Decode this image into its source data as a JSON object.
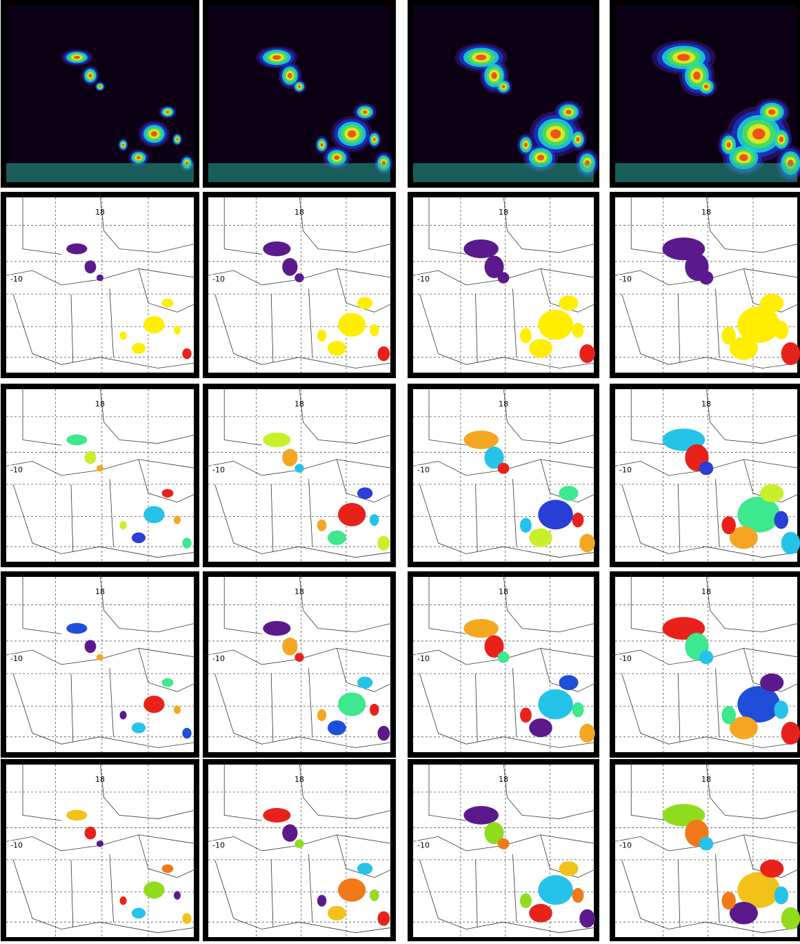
{
  "map_panels": [
    {
      "lat_label": "18",
      "lon_label": "-10"
    },
    {
      "lat_label": "18",
      "lon_label": "-10"
    },
    {
      "lat_label": "18",
      "lon_label": "-10"
    },
    {
      "lat_label": "18",
      "lon_label": "-10"
    },
    {
      "lat_label": "18",
      "lon_label": "-10"
    },
    {
      "lat_label": "18",
      "lon_label": "-10"
    },
    {
      "lat_label": "18",
      "lon_label": "-10"
    },
    {
      "lat_label": "18",
      "lon_label": "-10"
    },
    {
      "lat_label": "18",
      "lon_label": "-10"
    },
    {
      "lat_label": "18",
      "lon_label": "-10"
    },
    {
      "lat_label": "18",
      "lon_label": "-10"
    },
    {
      "lat_label": "18",
      "lon_label": "-10"
    },
    {
      "lat_label": "18",
      "lon_label": "-10"
    },
    {
      "lat_label": "18",
      "lon_label": "-10"
    },
    {
      "lat_label": "18",
      "lon_label": "-10"
    },
    {
      "lat_label": "18",
      "lon_label": "-10"
    }
  ]
}
